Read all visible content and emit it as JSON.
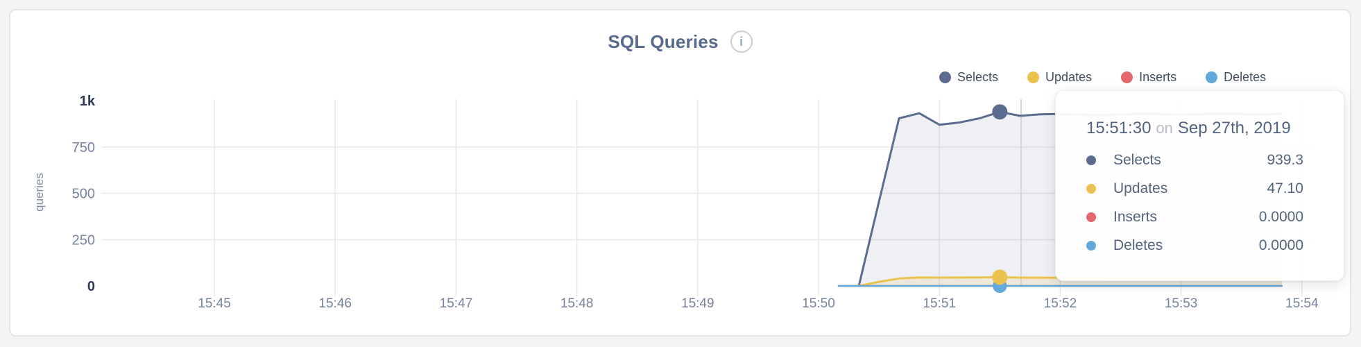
{
  "header": {
    "title": "SQL Queries"
  },
  "icons": {
    "info_glyph": "i"
  },
  "tooltip": {
    "time": "15:51:30",
    "on_word": "on",
    "date": "Sep 27th, 2019",
    "rows": [
      {
        "label": "Selects",
        "value": "939.3",
        "color": "#5b6c8f"
      },
      {
        "label": "Updates",
        "value": "47.10",
        "color": "#ecc24e"
      },
      {
        "label": "Inserts",
        "value": "0.0000",
        "color": "#e5666d"
      },
      {
        "label": "Deletes",
        "value": "0.0000",
        "color": "#62a9dc"
      }
    ]
  },
  "chart_data": {
    "type": "area",
    "title": "SQL Queries",
    "xlabel": "",
    "ylabel": "queries",
    "ylim": [
      0,
      1000
    ],
    "grid": true,
    "legend_position": "top-right",
    "x_ticks": [
      "15:45",
      "15:46",
      "15:47",
      "15:48",
      "15:49",
      "15:50",
      "15:51",
      "15:52",
      "15:53",
      "15:54"
    ],
    "y_ticks": [
      {
        "label": "1k",
        "value": 1000,
        "emphasis": true
      },
      {
        "label": "750",
        "value": 750,
        "emphasis": false
      },
      {
        "label": "500",
        "value": 500,
        "emphasis": false
      },
      {
        "label": "250",
        "value": 250,
        "emphasis": false
      },
      {
        "label": "0",
        "value": 0,
        "emphasis": true
      }
    ],
    "hover": {
      "time": "15:51:30",
      "date": "Sep 27th, 2019",
      "values": [
        939.3,
        47.1,
        0,
        0
      ]
    },
    "series": [
      {
        "name": "Selects",
        "color": "#5b6c8f",
        "fill": "rgba(91,108,143,0.10)",
        "points": [
          [
            "15:50:20",
            0
          ],
          [
            "15:50:30",
            455
          ],
          [
            "15:50:40",
            905
          ],
          [
            "15:50:50",
            932
          ],
          [
            "15:51:00",
            870
          ],
          [
            "15:51:10",
            882
          ],
          [
            "15:51:20",
            905
          ],
          [
            "15:51:30",
            939.3
          ],
          [
            "15:51:40",
            918
          ],
          [
            "15:51:50",
            926
          ],
          [
            "15:52:00",
            928
          ],
          [
            "15:52:20",
            921
          ],
          [
            "15:52:40",
            930
          ],
          [
            "15:53:00",
            925
          ],
          [
            "15:53:20",
            930
          ],
          [
            "15:53:40",
            926
          ],
          [
            "15:53:50",
            929
          ]
        ]
      },
      {
        "name": "Updates",
        "color": "#ecc24e",
        "fill": "rgba(236,194,78,0.16)",
        "points": [
          [
            "15:50:20",
            0
          ],
          [
            "15:50:30",
            22
          ],
          [
            "15:50:40",
            40
          ],
          [
            "15:50:50",
            46
          ],
          [
            "15:51:00",
            45
          ],
          [
            "15:51:20",
            46
          ],
          [
            "15:51:30",
            47.1
          ],
          [
            "15:51:40",
            45
          ],
          [
            "15:52:00",
            44
          ],
          [
            "15:53:00",
            43
          ],
          [
            "15:53:50",
            43
          ]
        ]
      },
      {
        "name": "Inserts",
        "color": "#e5666d",
        "fill": "none",
        "points": [
          [
            "15:50:10",
            0
          ],
          [
            "15:53:50",
            0
          ]
        ]
      },
      {
        "name": "Deletes",
        "color": "#62a9dc",
        "fill": "none",
        "points": [
          [
            "15:50:10",
            0
          ],
          [
            "15:53:50",
            0
          ]
        ]
      }
    ]
  }
}
